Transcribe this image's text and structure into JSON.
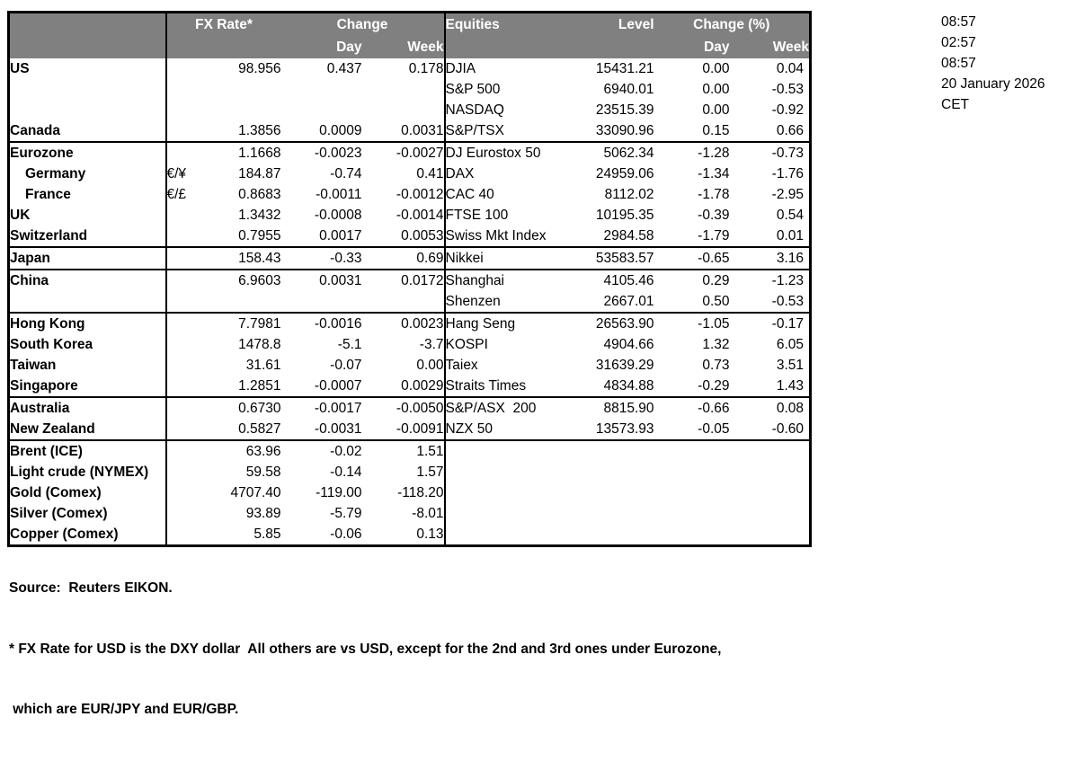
{
  "colors": {
    "header_bg": "#808080",
    "header_text": "#ffffff",
    "border": "#000000",
    "text": "#000000",
    "background": "#ffffff"
  },
  "header": {
    "fx": {
      "rate": "FX Rate*",
      "change": "Change",
      "day": "Day",
      "week": "Week"
    },
    "equities": {
      "name": "Equities",
      "level": "Level",
      "change": "Change (%)",
      "day": "Day",
      "week": "Week"
    }
  },
  "clock": {
    "lines": [
      "08:57",
      "02:57",
      "08:57",
      "20 January 2026",
      "CET"
    ]
  },
  "rows": [
    {
      "label": "US",
      "indent": false,
      "pair": "",
      "rate": "98.956",
      "day": "0.437",
      "week": "0.178",
      "equity": "DJIA",
      "level": "15431.21",
      "eq_day": "0.00",
      "eq_week": "0.04",
      "sep": false
    },
    {
      "label": "",
      "indent": false,
      "pair": "",
      "rate": "",
      "day": "",
      "week": "",
      "equity": "S&P 500",
      "level": "6940.01",
      "eq_day": "0.00",
      "eq_week": "-0.53",
      "sep": false
    },
    {
      "label": "",
      "indent": false,
      "pair": "",
      "rate": "",
      "day": "",
      "week": "",
      "equity": "NASDAQ",
      "level": "23515.39",
      "eq_day": "0.00",
      "eq_week": "-0.92",
      "sep": false
    },
    {
      "label": "Canada",
      "indent": false,
      "pair": "",
      "rate": "1.3856",
      "day": "0.0009",
      "week": "0.0031",
      "equity": "S&P/TSX",
      "level": "33090.96",
      "eq_day": "0.15",
      "eq_week": "0.66",
      "sep": true
    },
    {
      "label": "Eurozone",
      "indent": false,
      "pair": "",
      "rate": "1.1668",
      "day": "-0.0023",
      "week": "-0.0027",
      "equity": "DJ Eurostox 50",
      "level": "5062.34",
      "eq_day": "-1.28",
      "eq_week": "-0.73",
      "sep": false
    },
    {
      "label": "Germany",
      "indent": true,
      "pair": "€/¥",
      "rate": "184.87",
      "day": "-0.74",
      "week": "0.41",
      "equity": "DAX",
      "level": "24959.06",
      "eq_day": "-1.34",
      "eq_week": "-1.76",
      "sep": false
    },
    {
      "label": "France",
      "indent": true,
      "pair": "€/£",
      "rate": "0.8683",
      "day": "-0.0011",
      "week": "-0.0012",
      "equity": "CAC 40",
      "level": "8112.02",
      "eq_day": "-1.78",
      "eq_week": "-2.95",
      "sep": false
    },
    {
      "label": "UK",
      "indent": false,
      "pair": "",
      "rate": "1.3432",
      "day": "-0.0008",
      "week": "-0.0014",
      "equity": "FTSE 100",
      "level": "10195.35",
      "eq_day": "-0.39",
      "eq_week": "0.54",
      "sep": false
    },
    {
      "label": "Switzerland",
      "indent": false,
      "pair": "",
      "rate": "0.7955",
      "day": "0.0017",
      "week": "0.0053",
      "equity": "Swiss Mkt Index",
      "level": "2984.58",
      "eq_day": "-1.79",
      "eq_week": "0.01",
      "sep": true
    },
    {
      "label": "Japan",
      "indent": false,
      "pair": "",
      "rate": "158.43",
      "day": "-0.33",
      "week": "0.69",
      "equity": "Nikkei",
      "level": "53583.57",
      "eq_day": "-0.65",
      "eq_week": "3.16",
      "sep": true
    },
    {
      "label": "China",
      "indent": false,
      "pair": "",
      "rate": "6.9603",
      "day": "0.0031",
      "week": "0.0172",
      "equity": "Shanghai",
      "level": "4105.46",
      "eq_day": "0.29",
      "eq_week": "-1.23",
      "sep": false
    },
    {
      "label": "",
      "indent": false,
      "pair": "",
      "rate": "",
      "day": "",
      "week": "",
      "equity": "Shenzen",
      "level": "2667.01",
      "eq_day": "0.50",
      "eq_week": "-0.53",
      "sep": true
    },
    {
      "label": "Hong Kong",
      "indent": false,
      "pair": "",
      "rate": "7.7981",
      "day": "-0.0016",
      "week": "0.0023",
      "equity": "Hang Seng",
      "level": "26563.90",
      "eq_day": "-1.05",
      "eq_week": "-0.17",
      "sep": false
    },
    {
      "label": "South Korea",
      "indent": false,
      "pair": "",
      "rate": "1478.8",
      "day": "-5.1",
      "week": "-3.7",
      "equity": "KOSPI",
      "level": "4904.66",
      "eq_day": "1.32",
      "eq_week": "6.05",
      "sep": false
    },
    {
      "label": "Taiwan",
      "indent": false,
      "pair": "",
      "rate": "31.61",
      "day": "-0.07",
      "week": "0.00",
      "equity": "Taiex",
      "level": "31639.29",
      "eq_day": "0.73",
      "eq_week": "3.51",
      "sep": false
    },
    {
      "label": "Singapore",
      "indent": false,
      "pair": "",
      "rate": "1.2851",
      "day": "-0.0007",
      "week": "0.0029",
      "equity": "Straits Times",
      "level": "4834.88",
      "eq_day": "-0.29",
      "eq_week": "1.43",
      "sep": true
    },
    {
      "label": "Australia",
      "indent": false,
      "pair": "",
      "rate": "0.6730",
      "day": "-0.0017",
      "week": "-0.0050",
      "equity": "S&P/ASX  200",
      "level": "8815.90",
      "eq_day": "-0.66",
      "eq_week": "0.08",
      "sep": false
    },
    {
      "label": "New Zealand",
      "indent": false,
      "pair": "",
      "rate": "0.5827",
      "day": "-0.0031",
      "week": "-0.0091",
      "equity": "NZX 50",
      "level": "13573.93",
      "eq_day": "-0.05",
      "eq_week": "-0.60",
      "sep": true
    },
    {
      "label": "Brent (ICE)",
      "indent": false,
      "pair": "",
      "rate": "63.96",
      "day": "-0.02",
      "week": "1.51",
      "equity": "",
      "level": "",
      "eq_day": "",
      "eq_week": "",
      "sep": false
    },
    {
      "label": "Light crude (NYMEX)",
      "indent": false,
      "pair": "",
      "rate": "59.58",
      "day": "-0.14",
      "week": "1.57",
      "equity": "",
      "level": "",
      "eq_day": "",
      "eq_week": "",
      "sep": false
    },
    {
      "label": "Gold (Comex)",
      "indent": false,
      "pair": "",
      "rate": "4707.40",
      "day": "-119.00",
      "week": "-118.20",
      "equity": "",
      "level": "",
      "eq_day": "",
      "eq_week": "",
      "sep": false
    },
    {
      "label": "Silver (Comex)",
      "indent": false,
      "pair": "",
      "rate": "93.89",
      "day": "-5.79",
      "week": "-8.01",
      "equity": "",
      "level": "",
      "eq_day": "",
      "eq_week": "",
      "sep": false
    },
    {
      "label": "Copper (Comex)",
      "indent": false,
      "pair": "",
      "rate": "5.85",
      "day": "-0.06",
      "week": "0.13",
      "equity": "",
      "level": "",
      "eq_day": "",
      "eq_week": "",
      "sep": false
    }
  ],
  "footer": {
    "source": "Source:  Reuters EIKON.",
    "note1": "* FX Rate for USD is the DXY dollar  All others are vs USD, except for the 2nd and 3rd ones under Eurozone,",
    "note2": " which are EUR/JPY and EUR/GBP."
  }
}
